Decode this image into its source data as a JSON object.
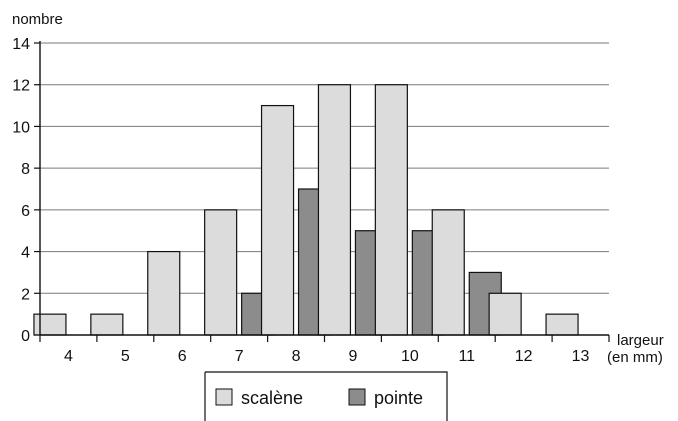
{
  "chart_data": {
    "type": "bar",
    "ylabel": "nombre",
    "xlabel": [
      "largeur",
      "(en mm)"
    ],
    "categories": [
      "4",
      "5",
      "6",
      "7",
      "8",
      "9",
      "10",
      "11",
      "12",
      "13"
    ],
    "series": [
      {
        "name": "scalène",
        "color": "#dcdcdc",
        "values": [
          1,
          1,
          4,
          6,
          11,
          12,
          12,
          6,
          2,
          1
        ]
      },
      {
        "name": "pointe",
        "color": "#8c8c8c",
        "values": [
          0,
          0,
          0,
          2,
          7,
          5,
          5,
          3,
          0,
          0
        ]
      }
    ],
    "ylim": [
      0,
      14
    ],
    "yticks": [
      0,
      2,
      4,
      6,
      8,
      10,
      12,
      14
    ],
    "grid": true,
    "legend_position": "bottom-center"
  }
}
